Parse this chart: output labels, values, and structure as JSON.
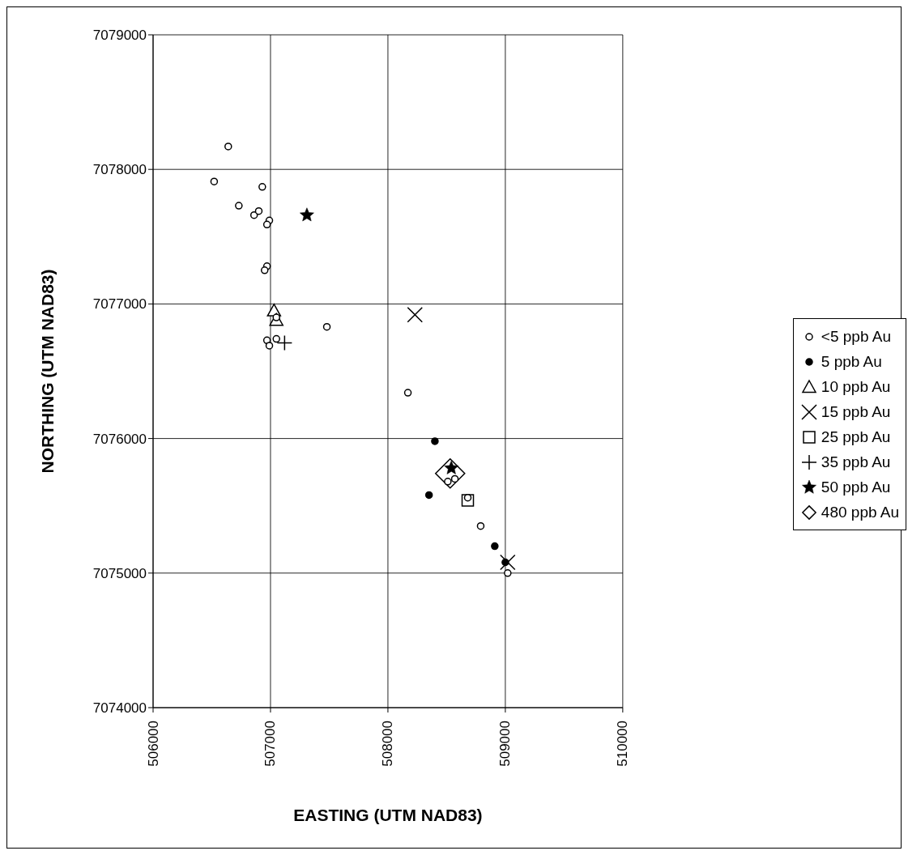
{
  "chart_data": {
    "type": "scatter",
    "xlabel": "EASTING (UTM NAD83)",
    "ylabel": "NORTHING (UTM NAD83)",
    "xlim": [
      506000,
      510000
    ],
    "xticks": [
      506000,
      507000,
      508000,
      509000,
      510000
    ],
    "ylim": [
      7074000,
      7079000
    ],
    "yticks": [
      7074000,
      7075000,
      7076000,
      7077000,
      7078000,
      7079000
    ],
    "grid": true,
    "legend": "right",
    "series": [
      {
        "name": "<5 ppb Au",
        "color": "#ffffff",
        "marker": "circle",
        "x": [
          506640,
          506520,
          506730,
          506930,
          506860,
          506900,
          506990,
          506970,
          506970,
          506950,
          507480,
          506970,
          506990,
          507050,
          507050,
          508170,
          508570,
          508510,
          508680,
          508790,
          509020
        ],
        "values": [
          7078170,
          7077910,
          7077730,
          7077870,
          7077660,
          7077690,
          7077620,
          7077590,
          7077280,
          7077250,
          7076830,
          7076730,
          7076690,
          7076740,
          7076900,
          7076340,
          7075700,
          7075680,
          7075560,
          7075350,
          7075000
        ]
      },
      {
        "name": "5 ppb Au",
        "color": "#000000",
        "marker": "circle",
        "x": [
          508400,
          508350,
          508910,
          509000
        ],
        "values": [
          7075980,
          7075580,
          7075200,
          7075080
        ]
      },
      {
        "name": "10 ppb Au",
        "color": "#ffffff",
        "marker": "triangle",
        "x": [
          507030,
          507050
        ],
        "values": [
          7076950,
          7076880
        ]
      },
      {
        "name": "15 ppb Au",
        "color": "#000000",
        "marker": "cross",
        "x": [
          508230,
          509020
        ],
        "values": [
          7076920,
          7075080
        ]
      },
      {
        "name": "25 ppb Au",
        "color": "#ffffff",
        "marker": "square",
        "x": [
          508680
        ],
        "values": [
          7075540
        ]
      },
      {
        "name": "35 ppb Au",
        "color": "#000000",
        "marker": "plus",
        "x": [
          507120
        ],
        "values": [
          7076710
        ]
      },
      {
        "name": "50 ppb Au",
        "color": "#000000",
        "marker": "star",
        "x": [
          507310,
          508540
        ],
        "values": [
          7077660,
          7075780
        ]
      },
      {
        "name": "480 ppb Au",
        "color": "#ffffff",
        "marker": "diamond",
        "x": [
          508530
        ],
        "values": [
          7075740
        ]
      }
    ]
  }
}
